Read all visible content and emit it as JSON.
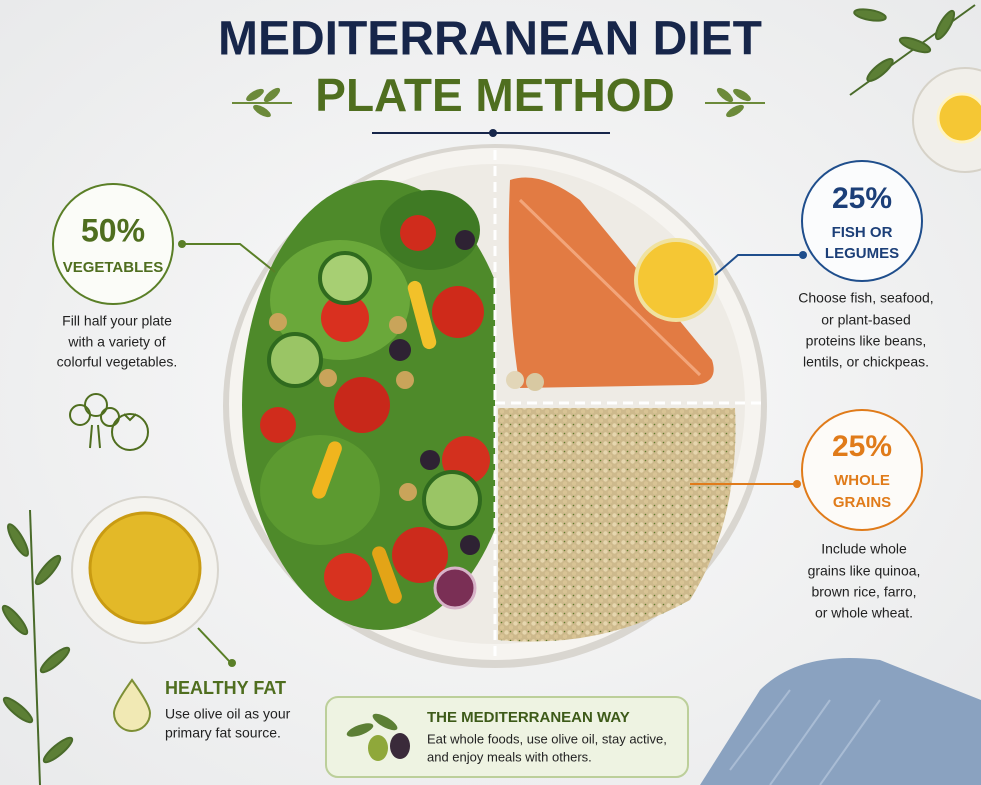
{
  "header": {
    "title": "MEDITERRANEAN DIET",
    "subtitle": "PLATE METHOD"
  },
  "sections": [
    {
      "percent": "50%",
      "label": [
        "VEGETABLES"
      ],
      "description": [
        "Fill half your plate",
        "with a variety of",
        "colorful vegetables."
      ]
    },
    {
      "percent": "25%",
      "label": [
        "FISH OR",
        "LEGUMES"
      ],
      "description": [
        "Choose fish, seafood,",
        "or plant-based",
        "proteins like beans,",
        "lentils, or chickpeas."
      ]
    },
    {
      "percent": "25%",
      "label": [
        "WHOLE",
        "GRAINS"
      ],
      "description": [
        "Include whole",
        "grains like quinoa,",
        "brown rice, farro,",
        "or whole wheat."
      ]
    }
  ],
  "healthy_fat": {
    "title": "HEALTHY FAT",
    "description": [
      "Use olive oil as your",
      "primary fat source."
    ]
  },
  "mediterranean_way": {
    "title": "THE MEDITERRANEAN WAY",
    "description": [
      "Eat whole foods, use olive oil, stay active,",
      "and enjoy meals with others."
    ]
  }
}
